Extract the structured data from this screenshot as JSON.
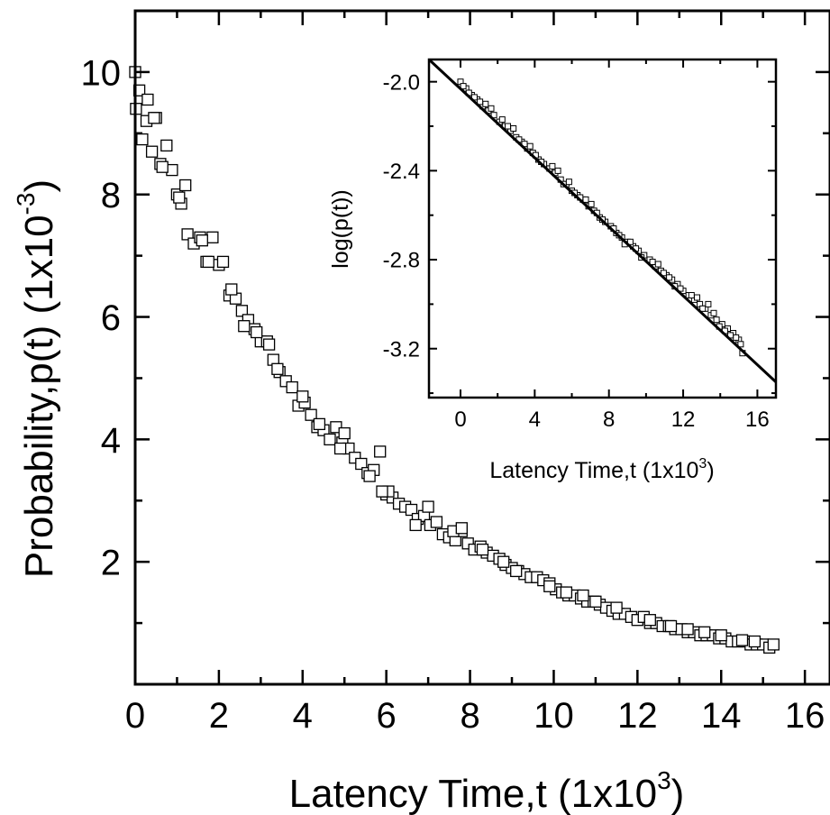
{
  "chart_data": [
    {
      "type": "scatter",
      "xlabel": "Latency Time,t (1x10",
      "xlabel_sup": "3",
      "xlabel_close": ")",
      "ylabel": "Probability,p(t) (1x10",
      "ylabel_sup": "-3",
      "ylabel_close": ")",
      "xlim": [
        0,
        16.6
      ],
      "ylim": [
        0,
        11.0
      ],
      "xticks": [
        0,
        2,
        4,
        6,
        8,
        10,
        12,
        14,
        16
      ],
      "xtick_labels": [
        "0",
        "2",
        "4",
        "6",
        "8",
        "10",
        "12",
        "14",
        "16"
      ],
      "yticks": [
        2,
        4,
        6,
        8,
        10
      ],
      "ytick_labels": [
        "2",
        "4",
        "6",
        "8",
        "10"
      ],
      "grid": false,
      "marker": "open-square",
      "series": [
        {
          "x": [
            0.0,
            0.02,
            0.1,
            0.17,
            0.27,
            0.4,
            0.5,
            0.6,
            0.75,
            0.88,
            1.0,
            1.1,
            1.25,
            1.4,
            1.55,
            1.7,
            1.85,
            2.0,
            2.1,
            2.25,
            2.4,
            2.55,
            2.7,
            2.85,
            3.0,
            3.15,
            3.3,
            3.45,
            3.6,
            3.75,
            3.9,
            4.05,
            4.2,
            4.35,
            4.5,
            4.65,
            4.8,
            4.95,
            5.1,
            5.25,
            5.4,
            5.55,
            5.7,
            5.85,
            6.0,
            6.15,
            6.3,
            6.45,
            6.6,
            6.75,
            6.9,
            7.05,
            7.2,
            7.35,
            7.5,
            7.65,
            7.8,
            7.95,
            8.1,
            8.25,
            8.4,
            8.55,
            8.7,
            8.85,
            9.0,
            9.15,
            9.3,
            9.45,
            9.6,
            9.75,
            9.9,
            10.05,
            10.2,
            10.35,
            10.5,
            10.65,
            10.8,
            10.95,
            11.1,
            11.25,
            11.4,
            11.55,
            11.7,
            11.85,
            12.0,
            12.15,
            12.3,
            12.45,
            12.6,
            12.75,
            12.9,
            13.05,
            13.2,
            13.35,
            13.5,
            13.65,
            13.8,
            13.95,
            14.1,
            14.25,
            14.4,
            14.55,
            14.7,
            14.85,
            15.0,
            15.15,
            15.25,
            0.3,
            0.65,
            1.2,
            1.6,
            2.3,
            2.9,
            3.4,
            4.0,
            4.9,
            5.6,
            6.05,
            6.7,
            7.6,
            8.3,
            9.1,
            9.9,
            10.7,
            11.5,
            12.3,
            13.2,
            14.0,
            14.8,
            0.45,
            1.05,
            1.75,
            2.6,
            3.2,
            4.4,
            5.0,
            5.9,
            7.0,
            7.8,
            8.8,
            10.3,
            11.0,
            12.8,
            13.6,
            14.5
          ],
          "values": [
            10.0,
            9.4,
            9.7,
            8.9,
            9.2,
            8.7,
            9.25,
            8.5,
            8.8,
            8.4,
            8.0,
            7.85,
            7.35,
            7.2,
            7.3,
            6.9,
            7.3,
            6.85,
            6.9,
            6.35,
            6.3,
            6.1,
            5.95,
            5.8,
            5.6,
            5.6,
            5.3,
            5.1,
            4.95,
            4.85,
            4.55,
            4.6,
            4.4,
            4.2,
            4.15,
            4.0,
            4.2,
            3.95,
            3.85,
            3.7,
            3.6,
            3.45,
            3.5,
            3.8,
            3.1,
            3.05,
            2.95,
            2.9,
            2.85,
            2.7,
            2.75,
            2.6,
            2.65,
            2.45,
            2.4,
            2.35,
            2.5,
            2.3,
            2.2,
            2.25,
            2.15,
            2.1,
            2.05,
            1.95,
            1.9,
            1.85,
            1.8,
            1.75,
            1.75,
            1.7,
            1.65,
            1.55,
            1.5,
            1.45,
            1.45,
            1.4,
            1.35,
            1.35,
            1.3,
            1.25,
            1.2,
            1.15,
            1.15,
            1.1,
            1.05,
            1.1,
            1.0,
            1.0,
            0.95,
            0.95,
            0.9,
            0.9,
            0.85,
            0.85,
            0.8,
            0.8,
            0.8,
            0.75,
            0.75,
            0.7,
            0.7,
            0.7,
            0.65,
            0.65,
            0.65,
            0.6,
            0.65,
            9.55,
            8.45,
            8.15,
            7.25,
            6.45,
            5.75,
            5.15,
            4.7,
            3.85,
            3.4,
            3.15,
            2.6,
            2.5,
            2.2,
            1.85,
            1.6,
            1.45,
            1.25,
            1.05,
            0.9,
            0.8,
            0.7,
            9.25,
            7.95,
            6.9,
            5.85,
            5.55,
            4.25,
            4.1,
            3.15,
            2.9,
            2.55,
            2.0,
            1.5,
            1.35,
            0.95,
            0.85,
            0.72
          ]
        }
      ]
    },
    {
      "type": "scatter",
      "xlabel": "Latency Time,t (1x10",
      "xlabel_sup": "3",
      "xlabel_close": ")",
      "ylabel": "log(p(t))",
      "xlim": [
        -1.7,
        17.0
      ],
      "ylim": [
        -3.42,
        -1.9
      ],
      "xticks": [
        0,
        4,
        8,
        12,
        16
      ],
      "xtick_labels": [
        "0",
        "4",
        "8",
        "12",
        "16"
      ],
      "yticks": [
        -2.0,
        -2.4,
        -2.8,
        -3.2
      ],
      "ytick_labels": [
        "-2.0",
        "-2.4",
        "-2.8",
        "-3.2"
      ],
      "grid": false,
      "marker": "small-open-square",
      "fit_line": {
        "x": [
          -1.7,
          17.0
        ],
        "y": [
          -1.9,
          -3.35
        ]
      },
      "series": [
        {
          "x": [
            0.0,
            0.3,
            0.6,
            0.9,
            1.2,
            1.5,
            1.8,
            2.1,
            2.4,
            2.7,
            3.0,
            3.3,
            3.6,
            3.9,
            4.2,
            4.5,
            4.8,
            5.1,
            5.4,
            5.7,
            6.0,
            6.3,
            6.6,
            6.9,
            7.2,
            7.5,
            7.8,
            8.1,
            8.4,
            8.7,
            9.0,
            9.3,
            9.6,
            9.9,
            10.2,
            10.5,
            10.8,
            11.1,
            11.4,
            11.7,
            12.0,
            12.3,
            12.6,
            12.9,
            13.2,
            13.5,
            13.8,
            14.1,
            14.4,
            14.7,
            15.0,
            15.2,
            0.15,
            0.75,
            1.35,
            2.25,
            2.85,
            3.45,
            4.05,
            4.95,
            5.55,
            6.15,
            6.75,
            7.35,
            8.25,
            8.85,
            9.45,
            10.35,
            10.95,
            11.55,
            12.45,
            13.05,
            13.65,
            14.25,
            14.85,
            15.1,
            0.45,
            1.05,
            1.65,
            2.55,
            3.15,
            3.75,
            4.35,
            5.25,
            5.85,
            6.45,
            7.05,
            7.65,
            8.55,
            9.15,
            9.75,
            10.65,
            11.25,
            11.85,
            12.75,
            13.35,
            13.95,
            14.55
          ],
          "values": [
            -2.0,
            -2.03,
            -2.06,
            -2.08,
            -2.11,
            -2.13,
            -2.15,
            -2.18,
            -2.2,
            -2.22,
            -2.25,
            -2.27,
            -2.3,
            -2.32,
            -2.35,
            -2.37,
            -2.39,
            -2.41,
            -2.44,
            -2.46,
            -2.49,
            -2.51,
            -2.53,
            -2.56,
            -2.58,
            -2.61,
            -2.63,
            -2.65,
            -2.68,
            -2.7,
            -2.72,
            -2.74,
            -2.76,
            -2.78,
            -2.8,
            -2.83,
            -2.85,
            -2.87,
            -2.89,
            -2.91,
            -2.94,
            -2.96,
            -2.98,
            -3.0,
            -3.02,
            -3.05,
            -3.07,
            -3.09,
            -3.11,
            -3.13,
            -3.16,
            -3.22,
            -2.02,
            -2.07,
            -2.1,
            -2.17,
            -2.21,
            -2.28,
            -2.33,
            -2.38,
            -2.46,
            -2.5,
            -2.53,
            -2.59,
            -2.66,
            -2.73,
            -2.75,
            -2.81,
            -2.86,
            -2.92,
            -2.96,
            -3.02,
            -3.04,
            -3.12,
            -3.15,
            -3.18,
            -2.05,
            -2.09,
            -2.12,
            -2.2,
            -2.26,
            -2.29,
            -2.36,
            -2.4,
            -2.45,
            -2.52,
            -2.55,
            -2.62,
            -2.69,
            -2.72,
            -2.79,
            -2.82,
            -2.88,
            -2.93,
            -2.97,
            -3.0,
            -3.1,
            -3.14
          ]
        }
      ]
    }
  ]
}
